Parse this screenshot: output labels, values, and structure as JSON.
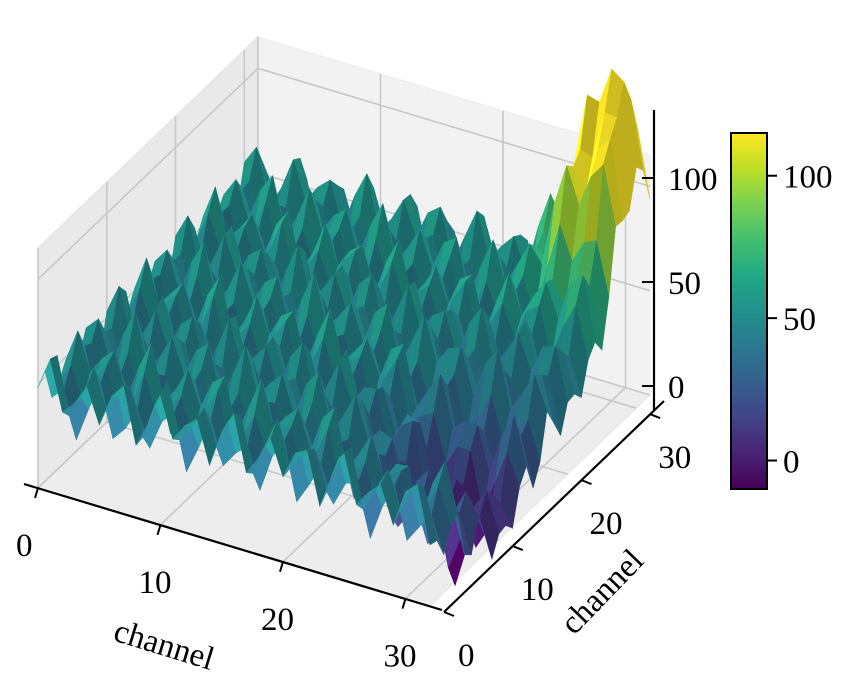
{
  "chart_data": {
    "type": "surface3d",
    "xlabel": "channel",
    "ylabel": "channel",
    "zlabel": "",
    "xlim": [
      0,
      32
    ],
    "ylim": [
      0,
      32
    ],
    "zlim": [
      0,
      115
    ],
    "x_ticks": [
      0,
      10,
      20,
      30
    ],
    "y_ticks": [
      0,
      10,
      20,
      30
    ],
    "z_ticks": [
      0,
      50,
      100
    ],
    "grid": true,
    "colormap": "viridis",
    "colorbar": {
      "range": [
        -10,
        115
      ],
      "ticks": [
        0,
        50,
        100
      ]
    },
    "grid_size": 32,
    "surface_summary": {
      "near_corner_x0_y0": 45,
      "min_region": "x≈30, y≈10, z≈-10",
      "max_region": "x≈30, y≈30, z≈112",
      "pattern": "periodic ridges along both channel axes with peaks every ~3 channels"
    }
  }
}
